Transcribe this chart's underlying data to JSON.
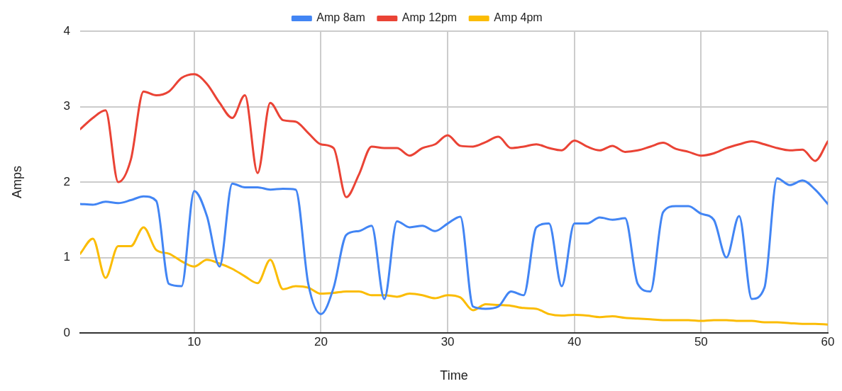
{
  "chart_data": {
    "type": "line",
    "xlabel": "Time",
    "ylabel": "Amps",
    "legend": "top",
    "grid": true,
    "marker": "none",
    "line_style": "solid",
    "x": [
      1,
      2,
      3,
      4,
      5,
      6,
      7,
      8,
      9,
      10,
      11,
      12,
      13,
      14,
      15,
      16,
      17,
      18,
      19,
      20,
      21,
      22,
      23,
      24,
      25,
      26,
      27,
      28,
      29,
      30,
      31,
      32,
      33,
      34,
      35,
      36,
      37,
      38,
      39,
      40,
      41,
      42,
      43,
      44,
      45,
      46,
      47,
      48,
      49,
      50,
      51,
      52,
      53,
      54,
      55,
      56,
      57,
      58,
      59,
      60
    ],
    "xlim": [
      1,
      60
    ],
    "xticks": [
      10,
      20,
      30,
      40,
      50,
      60
    ],
    "ylim": [
      0,
      4
    ],
    "yticks": [
      0,
      1,
      2,
      3,
      4
    ],
    "series": [
      {
        "name": "Amp 8am",
        "color": "#4285f4",
        "values": [
          1.71,
          1.7,
          1.74,
          1.72,
          1.76,
          1.81,
          1.75,
          0.65,
          0.62,
          1.88,
          1.55,
          0.88,
          1.98,
          1.93,
          1.93,
          1.9,
          1.91,
          1.9,
          0.65,
          0.25,
          0.6,
          1.3,
          1.35,
          1.42,
          0.45,
          1.48,
          1.4,
          1.42,
          1.35,
          1.45,
          1.54,
          0.35,
          0.32,
          0.35,
          0.55,
          0.5,
          1.4,
          1.45,
          0.62,
          1.45,
          1.45,
          1.53,
          1.5,
          1.52,
          0.65,
          0.55,
          1.6,
          1.68,
          1.68,
          1.58,
          1.5,
          1.0,
          1.55,
          0.45,
          0.6,
          2.05,
          1.96,
          2.02,
          1.9,
          1.71
        ]
      },
      {
        "name": "Amp 12pm",
        "color": "#ea4335",
        "values": [
          2.7,
          2.85,
          2.95,
          2.0,
          2.3,
          3.2,
          3.15,
          3.2,
          3.38,
          3.43,
          3.3,
          3.05,
          2.85,
          3.15,
          2.12,
          3.05,
          2.82,
          2.8,
          2.65,
          2.5,
          2.45,
          1.8,
          2.1,
          2.47,
          2.45,
          2.45,
          2.35,
          2.45,
          2.5,
          2.62,
          2.48,
          2.47,
          2.53,
          2.6,
          2.45,
          2.47,
          2.5,
          2.45,
          2.42,
          2.55,
          2.47,
          2.42,
          2.48,
          2.4,
          2.42,
          2.47,
          2.52,
          2.44,
          2.4,
          2.35,
          2.38,
          2.45,
          2.5,
          2.54,
          2.5,
          2.45,
          2.42,
          2.43,
          2.28,
          2.54
        ]
      },
      {
        "name": "Amp 4pm",
        "color": "#fbbc04",
        "values": [
          1.05,
          1.25,
          0.73,
          1.15,
          1.15,
          1.4,
          1.1,
          1.05,
          0.95,
          0.88,
          0.97,
          0.92,
          0.85,
          0.75,
          0.66,
          0.97,
          0.58,
          0.62,
          0.6,
          0.52,
          0.53,
          0.55,
          0.55,
          0.5,
          0.5,
          0.48,
          0.52,
          0.5,
          0.46,
          0.5,
          0.47,
          0.3,
          0.38,
          0.37,
          0.36,
          0.33,
          0.32,
          0.25,
          0.23,
          0.24,
          0.23,
          0.21,
          0.22,
          0.2,
          0.19,
          0.18,
          0.17,
          0.17,
          0.17,
          0.16,
          0.17,
          0.17,
          0.16,
          0.16,
          0.14,
          0.14,
          0.13,
          0.12,
          0.12,
          0.11
        ]
      }
    ]
  }
}
